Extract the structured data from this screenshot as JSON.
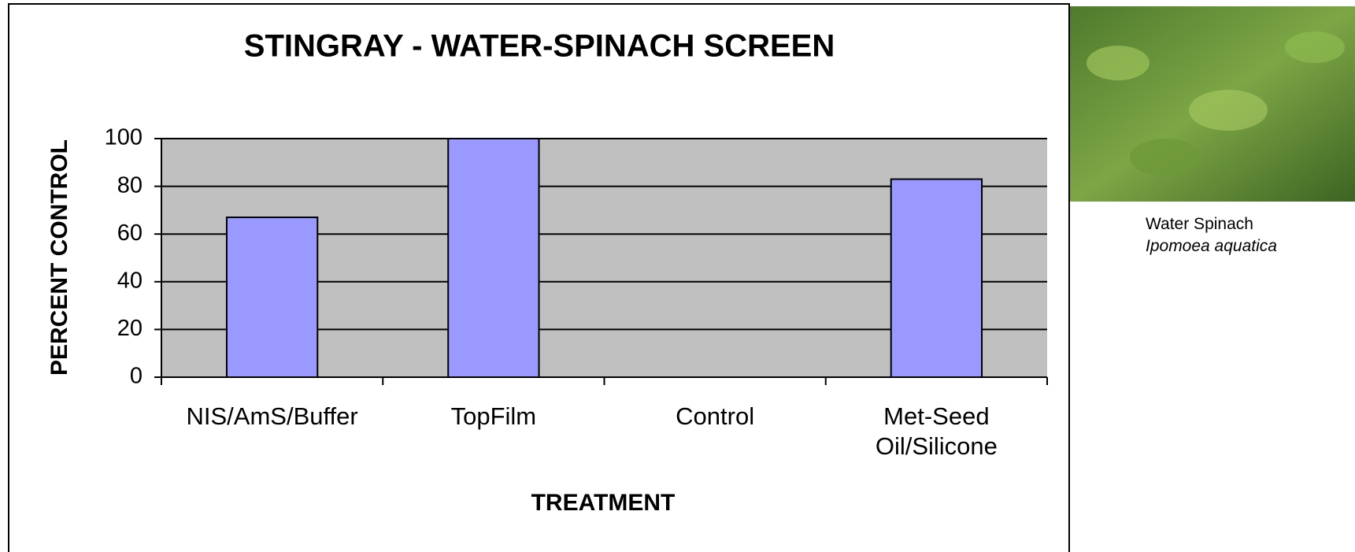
{
  "chart_data": {
    "type": "bar",
    "title": "STINGRAY - WATER-SPINACH SCREEN",
    "x_label": "TREATMENT",
    "y_label": "PERCENT CONTROL",
    "categories": [
      "NIS/AmS/Buffer",
      "TopFilm",
      "Control",
      "Met-Seed Oil/Silicone"
    ],
    "values": [
      67,
      100,
      0,
      83
    ],
    "color": "#9999ff",
    "plot_background": "#c0c0c0",
    "ylim": [
      0,
      100
    ],
    "yticks": [
      0,
      20,
      40,
      60,
      80,
      100
    ],
    "grid": true
  },
  "image_caption": {
    "common_name": "Water Spinach",
    "scientific_name": "Ipomoea aquatica"
  }
}
